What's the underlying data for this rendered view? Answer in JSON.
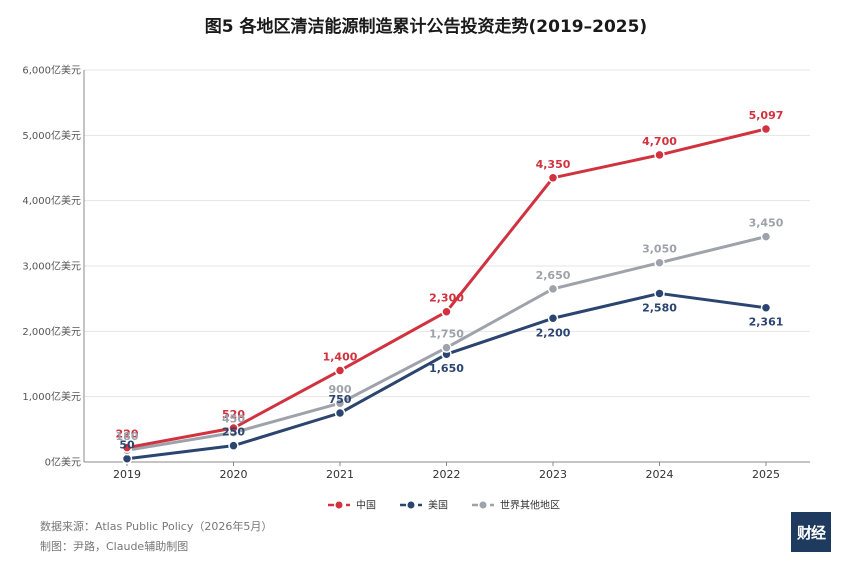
{
  "title": "图5  各地区清洁能源制造累计公告投资走势(2019–2025)",
  "source": "数据来源：Atlas Public Policy（2026年5月）",
  "credit": "制图：尹路，Claude辅助制图",
  "logo_text": "财经",
  "chart_data": {
    "type": "line",
    "title": "图5  各地区清洁能源制造累计公告投资走势(2019–2025)",
    "xlabel": "",
    "ylabel": "",
    "x": [
      "2019",
      "2020",
      "2021",
      "2022",
      "2023",
      "2024",
      "2025"
    ],
    "ylim": [
      0,
      6000
    ],
    "yticks": [
      0,
      1000,
      2000,
      3000,
      4000,
      5000,
      6000
    ],
    "ytick_labels": [
      "0亿美元",
      "1,000亿美元",
      "2,000亿美元",
      "3,000亿美元",
      "4,000亿美元",
      "5,000亿美元",
      "6,000亿美元"
    ],
    "grid": "horizontal",
    "legend_position": "bottom-center",
    "series": [
      {
        "name": "中国",
        "color": "#d0323f",
        "values": [
          220,
          520,
          1400,
          2300,
          4350,
          4700,
          5097
        ],
        "labels": [
          "220",
          "520",
          "1,400",
          "2,300",
          "4,350",
          "4,700",
          "5,097"
        ],
        "label_pos": [
          "above",
          "above",
          "above",
          "above",
          "above",
          "above",
          "above"
        ]
      },
      {
        "name": "美国",
        "color": "#2b4570",
        "values": [
          50,
          250,
          750,
          1650,
          2200,
          2580,
          2361
        ],
        "labels": [
          "50",
          "250",
          "750",
          "1,650",
          "2,200",
          "2,580",
          "2,361"
        ],
        "label_pos": [
          "above",
          "above",
          "above",
          "below",
          "below",
          "below",
          "below"
        ]
      },
      {
        "name": "世界其他地区",
        "color": "#9ea2ab",
        "values": [
          180,
          450,
          900,
          1750,
          2650,
          3050,
          3450
        ],
        "labels": [
          "180",
          "450",
          "900",
          "1,750",
          "2,650",
          "3,050",
          "3,450"
        ],
        "label_pos": [
          "above",
          "above",
          "above",
          "above",
          "above",
          "above",
          "above"
        ]
      }
    ]
  }
}
